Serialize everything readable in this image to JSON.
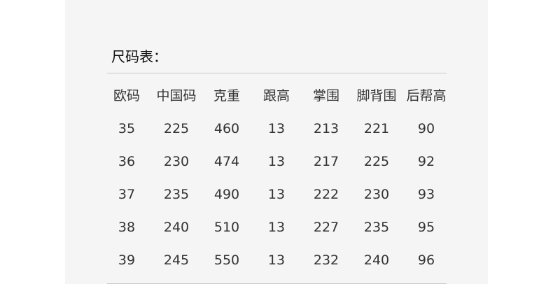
{
  "title": "尺码表：",
  "table": {
    "headers": [
      "欧码",
      "中国码",
      "克重",
      "跟高",
      "掌围",
      "脚背围",
      "后帮高"
    ],
    "rows": [
      [
        "35",
        "225",
        "460",
        "13",
        "213",
        "221",
        "90"
      ],
      [
        "36",
        "230",
        "474",
        "13",
        "217",
        "225",
        "92"
      ],
      [
        "37",
        "235",
        "490",
        "13",
        "222",
        "230",
        "93"
      ],
      [
        "38",
        "240",
        "510",
        "13",
        "227",
        "235",
        "95"
      ],
      [
        "39",
        "245",
        "550",
        "13",
        "232",
        "240",
        "96"
      ]
    ]
  }
}
